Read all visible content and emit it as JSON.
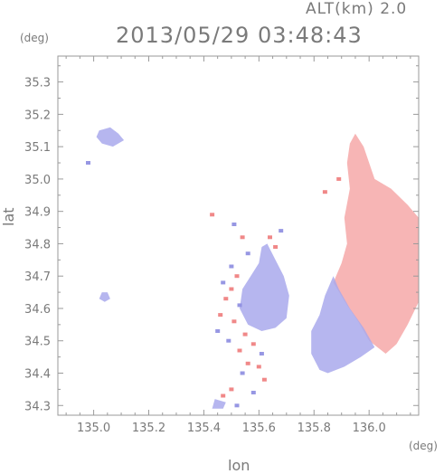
{
  "header": {
    "alt_label": "ALT(km)  2.0",
    "timestamp": "2013/05/29 03:48:43"
  },
  "chart_data": {
    "type": "heatmap",
    "title": "2013/05/29 03:48:43",
    "subtitle": "ALT(km)  2.0",
    "xlabel": "lon",
    "ylabel": "lat",
    "x_unit": "(deg)",
    "y_unit": "(deg)",
    "xlim": [
      134.87,
      136.18
    ],
    "ylim": [
      34.27,
      35.38
    ],
    "x_ticks": [
      135.0,
      135.2,
      135.4,
      135.6,
      135.8,
      136.0
    ],
    "x_tick_labels": [
      "135.0",
      "135.2",
      "135.4",
      "135.6",
      "135.8",
      "136.0"
    ],
    "y_ticks": [
      34.3,
      34.4,
      34.5,
      34.6,
      34.7,
      34.8,
      34.9,
      35.0,
      35.1,
      35.2,
      35.3
    ],
    "y_tick_labels": [
      "34.3",
      "34.4",
      "34.5",
      "34.6",
      "34.7",
      "34.8",
      "34.9",
      "35.0",
      "35.1",
      "35.2",
      "35.3"
    ],
    "grid": false,
    "colors": {
      "receding": "#f6a8a8",
      "approaching": "#a9a9ec",
      "axis": "#9a9a9a"
    },
    "regions": [
      {
        "name": "east-receding",
        "sign": "positive",
        "polygon": [
          [
            135.95,
            35.14
          ],
          [
            135.98,
            35.1
          ],
          [
            136.02,
            35.0
          ],
          [
            136.08,
            34.97
          ],
          [
            136.14,
            34.92
          ],
          [
            136.18,
            34.88
          ],
          [
            136.18,
            34.62
          ],
          [
            136.14,
            34.55
          ],
          [
            136.1,
            34.49
          ],
          [
            136.06,
            34.46
          ],
          [
            136.0,
            34.5
          ],
          [
            135.96,
            34.56
          ],
          [
            135.92,
            34.61
          ],
          [
            135.87,
            34.68
          ],
          [
            135.9,
            34.74
          ],
          [
            135.92,
            34.8
          ],
          [
            135.91,
            34.88
          ],
          [
            135.93,
            34.97
          ],
          [
            135.92,
            35.05
          ],
          [
            135.93,
            35.11
          ]
        ]
      },
      {
        "name": "east-approaching",
        "sign": "negative",
        "polygon": [
          [
            135.87,
            34.7
          ],
          [
            135.84,
            34.64
          ],
          [
            135.82,
            34.58
          ],
          [
            135.79,
            34.53
          ],
          [
            135.79,
            34.46
          ],
          [
            135.82,
            34.41
          ],
          [
            135.85,
            34.4
          ],
          [
            135.91,
            34.42
          ],
          [
            135.97,
            34.45
          ],
          [
            136.02,
            34.48
          ],
          [
            135.98,
            34.54
          ],
          [
            135.93,
            34.6
          ],
          [
            135.89,
            34.66
          ]
        ]
      },
      {
        "name": "center-approaching",
        "sign": "negative",
        "polygon": [
          [
            135.63,
            34.8
          ],
          [
            135.66,
            34.75
          ],
          [
            135.69,
            34.7
          ],
          [
            135.71,
            34.64
          ],
          [
            135.7,
            34.57
          ],
          [
            135.66,
            34.54
          ],
          [
            135.61,
            34.53
          ],
          [
            135.56,
            34.55
          ],
          [
            135.53,
            34.6
          ],
          [
            135.54,
            34.66
          ],
          [
            135.57,
            34.7
          ],
          [
            135.6,
            34.74
          ],
          [
            135.61,
            34.79
          ]
        ]
      },
      {
        "name": "north-approaching",
        "sign": "negative",
        "polygon": [
          [
            135.02,
            35.15
          ],
          [
            135.06,
            35.16
          ],
          [
            135.09,
            35.14
          ],
          [
            135.11,
            35.12
          ],
          [
            135.07,
            35.1
          ],
          [
            135.03,
            35.11
          ],
          [
            135.01,
            35.13
          ]
        ]
      },
      {
        "name": "west-approaching",
        "sign": "negative",
        "polygon": [
          [
            135.03,
            34.65
          ],
          [
            135.05,
            34.65
          ],
          [
            135.06,
            34.63
          ],
          [
            135.04,
            34.62
          ],
          [
            135.02,
            34.63
          ]
        ]
      },
      {
        "name": "south-approaching",
        "sign": "negative",
        "polygon": [
          [
            135.44,
            34.32
          ],
          [
            135.48,
            34.31
          ],
          [
            135.47,
            34.29
          ],
          [
            135.43,
            34.29
          ]
        ]
      }
    ],
    "speckles": [
      {
        "lon": 135.52,
        "lat": 34.7,
        "sign": "positive"
      },
      {
        "lon": 135.47,
        "lat": 34.68,
        "sign": "negative"
      },
      {
        "lon": 135.5,
        "lat": 34.66,
        "sign": "positive"
      },
      {
        "lon": 135.48,
        "lat": 34.63,
        "sign": "positive"
      },
      {
        "lon": 135.53,
        "lat": 34.61,
        "sign": "negative"
      },
      {
        "lon": 135.46,
        "lat": 34.58,
        "sign": "positive"
      },
      {
        "lon": 135.51,
        "lat": 34.56,
        "sign": "positive"
      },
      {
        "lon": 135.55,
        "lat": 34.52,
        "sign": "positive"
      },
      {
        "lon": 135.49,
        "lat": 34.5,
        "sign": "negative"
      },
      {
        "lon": 135.53,
        "lat": 34.47,
        "sign": "positive"
      },
      {
        "lon": 135.58,
        "lat": 34.49,
        "sign": "positive"
      },
      {
        "lon": 135.61,
        "lat": 34.46,
        "sign": "negative"
      },
      {
        "lon": 135.56,
        "lat": 34.43,
        "sign": "positive"
      },
      {
        "lon": 135.6,
        "lat": 34.42,
        "sign": "positive"
      },
      {
        "lon": 135.54,
        "lat": 34.4,
        "sign": "negative"
      },
      {
        "lon": 135.5,
        "lat": 34.35,
        "sign": "positive"
      },
      {
        "lon": 135.47,
        "lat": 34.33,
        "sign": "positive"
      },
      {
        "lon": 135.58,
        "lat": 34.34,
        "sign": "negative"
      },
      {
        "lon": 135.62,
        "lat": 34.38,
        "sign": "positive"
      },
      {
        "lon": 135.45,
        "lat": 34.53,
        "sign": "negative"
      },
      {
        "lon": 135.56,
        "lat": 34.77,
        "sign": "negative"
      },
      {
        "lon": 135.54,
        "lat": 34.82,
        "sign": "positive"
      },
      {
        "lon": 135.51,
        "lat": 34.86,
        "sign": "negative"
      },
      {
        "lon": 135.64,
        "lat": 34.82,
        "sign": "positive"
      },
      {
        "lon": 135.68,
        "lat": 34.84,
        "sign": "negative"
      },
      {
        "lon": 135.66,
        "lat": 34.79,
        "sign": "positive"
      },
      {
        "lon": 135.43,
        "lat": 34.89,
        "sign": "positive"
      },
      {
        "lon": 135.5,
        "lat": 34.73,
        "sign": "negative"
      },
      {
        "lon": 134.98,
        "lat": 35.05,
        "sign": "negative"
      },
      {
        "lon": 135.89,
        "lat": 35.0,
        "sign": "positive"
      },
      {
        "lon": 135.84,
        "lat": 34.96,
        "sign": "positive"
      },
      {
        "lon": 135.52,
        "lat": 34.3,
        "sign": "negative"
      }
    ]
  }
}
